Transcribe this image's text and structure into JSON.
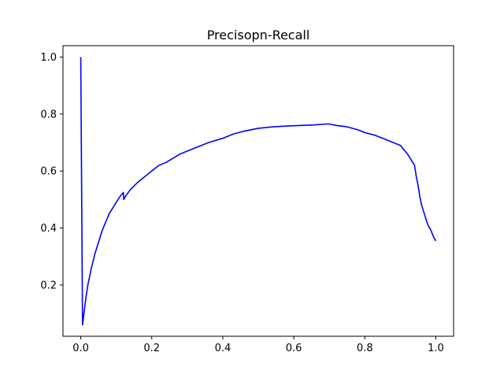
{
  "chart_data": {
    "type": "line",
    "title": "Precisopn-Recall",
    "xlabel": "",
    "ylabel": "",
    "xlim": [
      -0.05,
      1.05
    ],
    "ylim": [
      0.02,
      1.04
    ],
    "xticks": [
      0.0,
      0.2,
      0.4,
      0.6,
      0.8,
      1.0
    ],
    "xtick_labels": [
      "0.0",
      "0.2",
      "0.4",
      "0.6",
      "0.8",
      "1.0"
    ],
    "yticks": [
      0.2,
      0.4,
      0.6,
      0.8,
      1.0
    ],
    "ytick_labels": [
      "0.2",
      "0.4",
      "0.6",
      "0.8",
      "1.0"
    ],
    "grid": false,
    "line_color": "#0000ff",
    "series": [
      {
        "x": [
          0.0,
          0.005,
          0.01,
          0.015,
          0.02,
          0.03,
          0.04,
          0.05,
          0.06,
          0.07,
          0.08,
          0.09,
          0.1,
          0.11,
          0.12,
          0.121,
          0.125,
          0.14,
          0.16,
          0.18,
          0.2,
          0.22,
          0.24,
          0.26,
          0.28,
          0.3,
          0.33,
          0.36,
          0.4,
          0.43,
          0.46,
          0.5,
          0.54,
          0.58,
          0.62,
          0.66,
          0.69,
          0.7,
          0.72,
          0.75,
          0.78,
          0.8,
          0.83,
          0.86,
          0.88,
          0.9,
          0.91,
          0.92,
          0.93,
          0.94,
          0.945,
          0.95,
          0.955,
          0.96,
          0.965,
          0.97,
          0.975,
          0.98,
          0.985,
          0.99,
          0.995,
          1.0
        ],
        "y": [
          1.0,
          0.06,
          0.11,
          0.16,
          0.2,
          0.26,
          0.31,
          0.35,
          0.39,
          0.42,
          0.45,
          0.47,
          0.49,
          0.51,
          0.525,
          0.5,
          0.51,
          0.535,
          0.56,
          0.58,
          0.6,
          0.62,
          0.63,
          0.645,
          0.66,
          0.67,
          0.685,
          0.7,
          0.715,
          0.73,
          0.74,
          0.75,
          0.755,
          0.758,
          0.76,
          0.762,
          0.765,
          0.765,
          0.76,
          0.755,
          0.745,
          0.735,
          0.725,
          0.71,
          0.7,
          0.69,
          0.675,
          0.66,
          0.64,
          0.62,
          0.58,
          0.55,
          0.51,
          0.48,
          0.46,
          0.44,
          0.42,
          0.405,
          0.395,
          0.38,
          0.365,
          0.355
        ]
      }
    ]
  }
}
